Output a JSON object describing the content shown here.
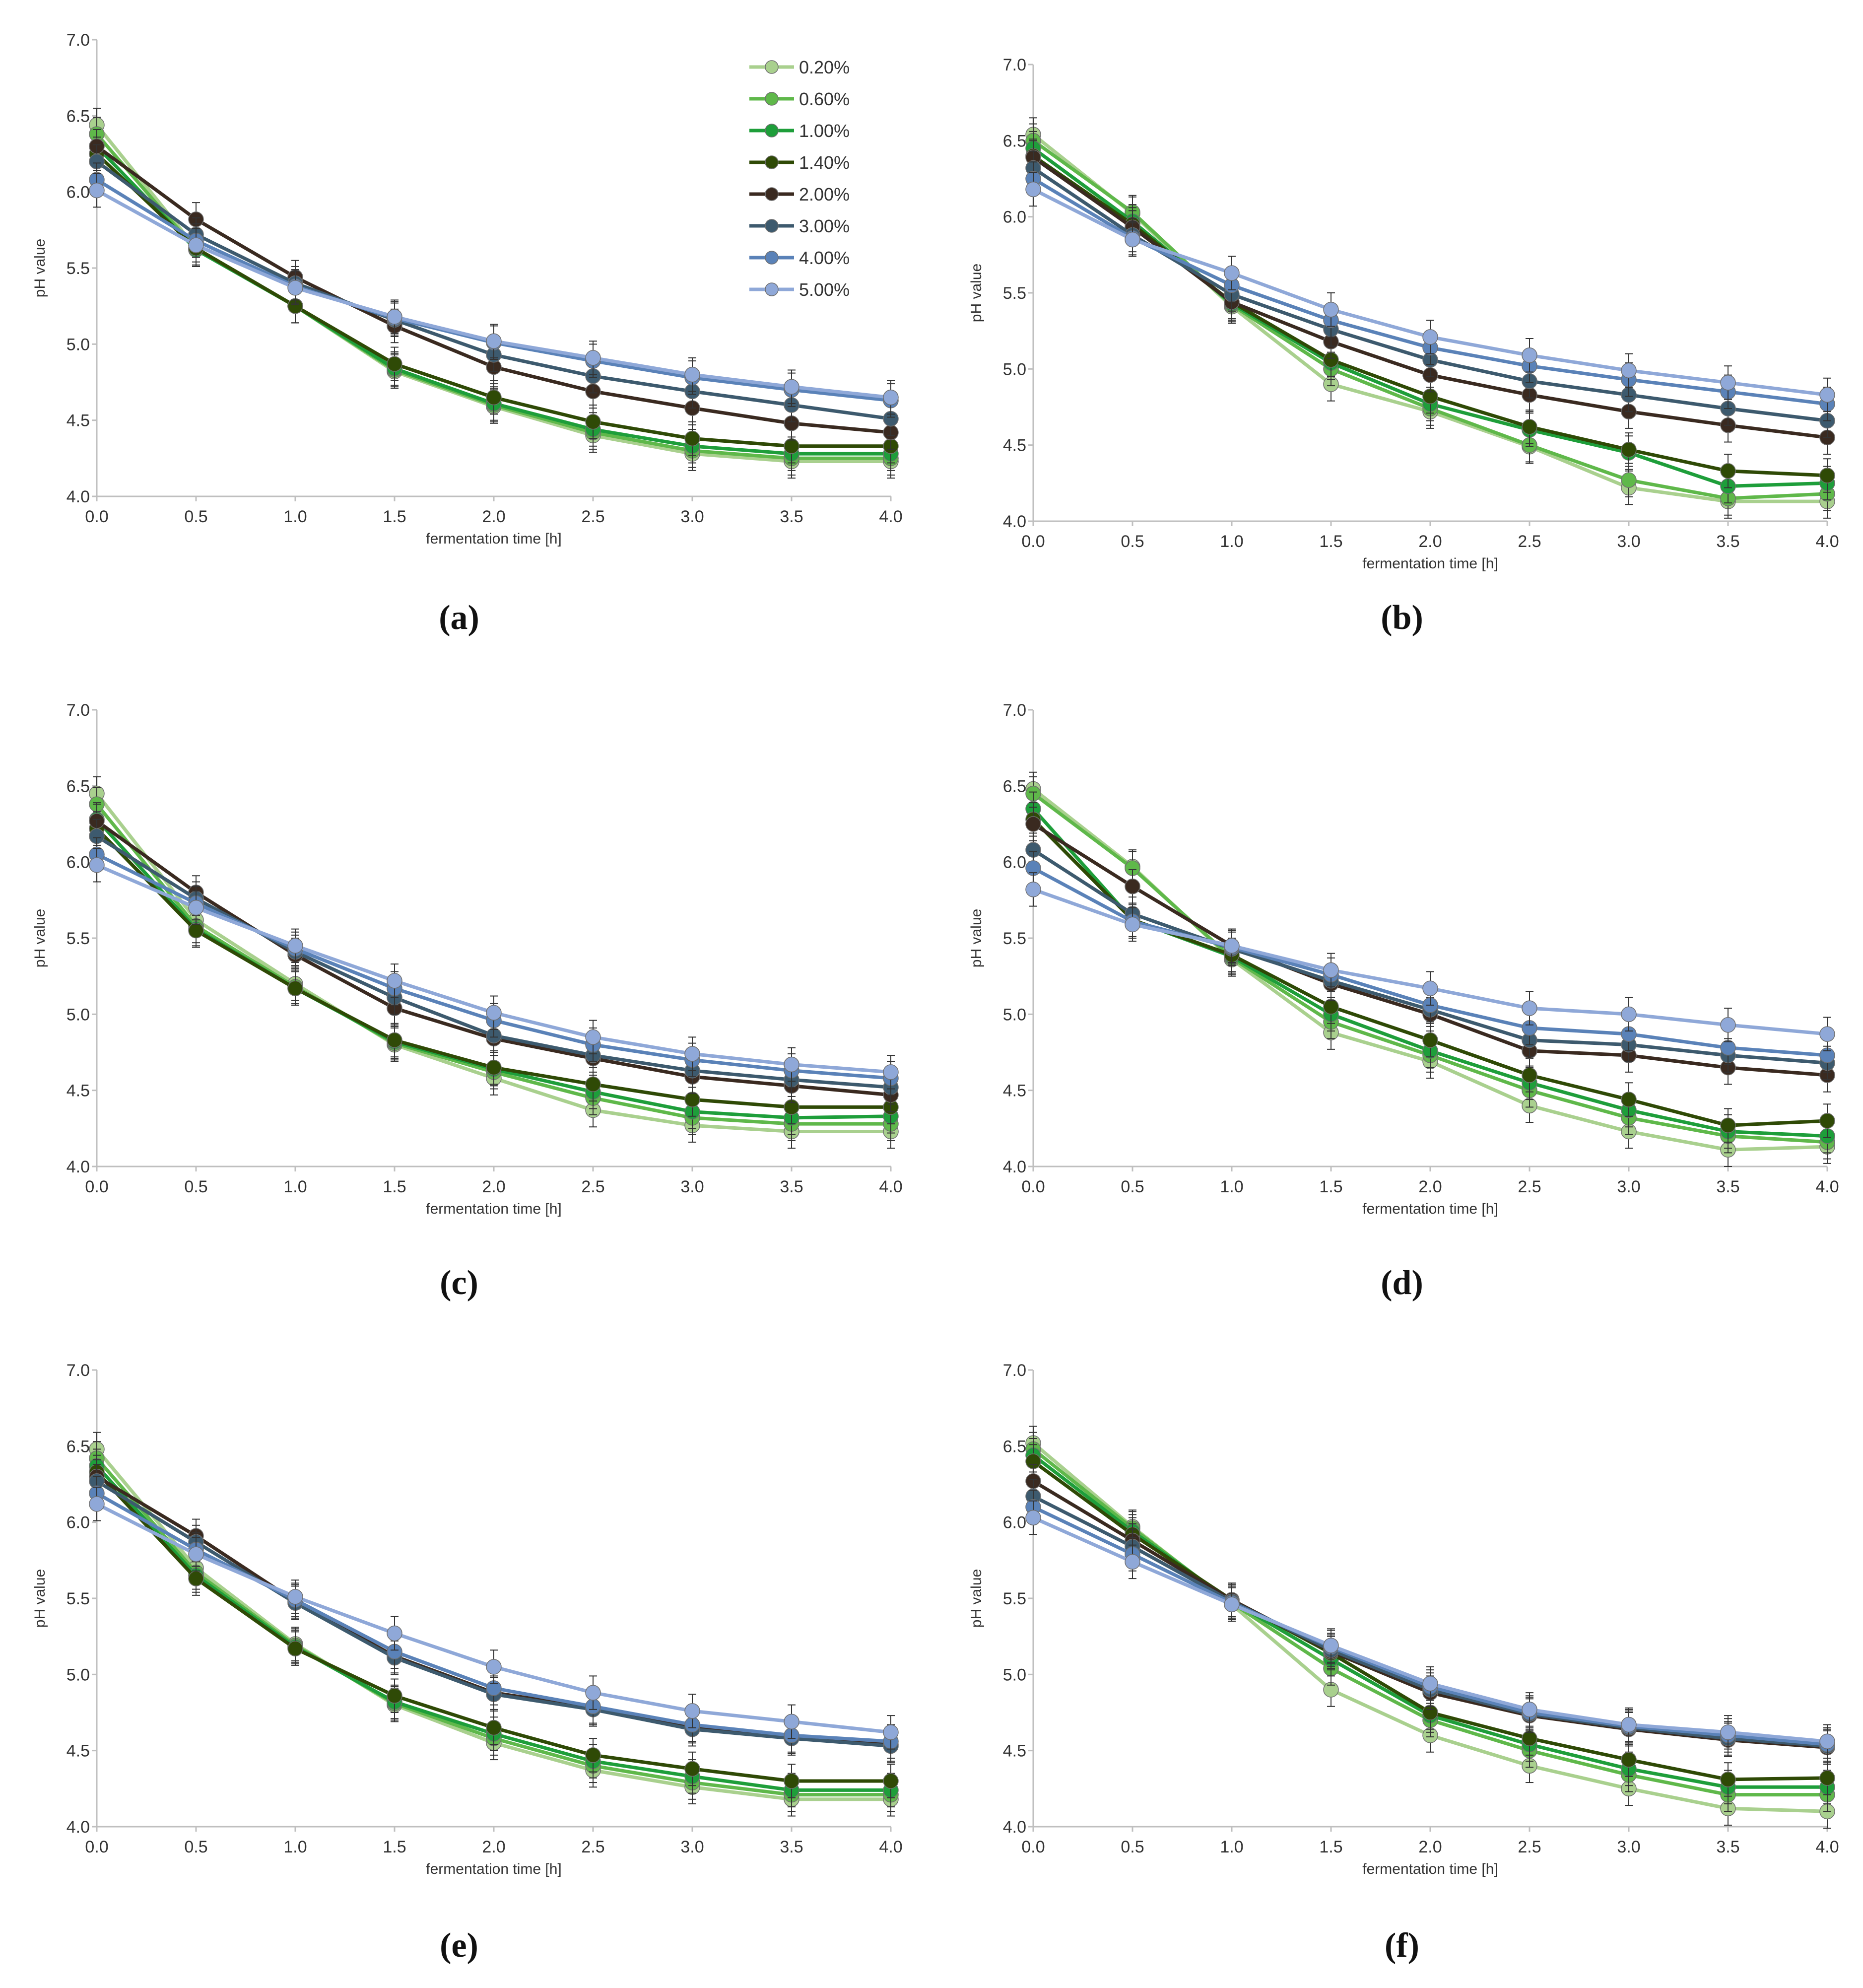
{
  "chart_data": [
    {
      "type": "line",
      "panel_label": "(a)",
      "xlabel": "fermentation time [h]",
      "ylabel": "pH value",
      "x": [
        0.0,
        0.5,
        1.0,
        1.5,
        2.0,
        2.5,
        3.0,
        3.5,
        4.0
      ],
      "xlim": [
        0.0,
        4.0
      ],
      "ylim": [
        4.0,
        7.0
      ],
      "xticks": [
        "0.0",
        "0.5",
        "1.0",
        "1.5",
        "2.0",
        "2.5",
        "3.0",
        "3.5",
        "4.0"
      ],
      "yticks": [
        "4.0",
        "4.5",
        "5.0",
        "5.5",
        "6.0",
        "6.5",
        "7.0"
      ],
      "legend": true,
      "legend_position": "top-right",
      "series": [
        {
          "name": "0.20%",
          "color": "#a9d08e",
          "values": [
            6.44,
            5.63,
            5.25,
            4.82,
            4.59,
            4.4,
            4.28,
            4.23,
            4.23
          ]
        },
        {
          "name": "0.60%",
          "color": "#5fb84a",
          "values": [
            6.38,
            5.62,
            5.25,
            4.83,
            4.6,
            4.42,
            4.3,
            4.25,
            4.25
          ]
        },
        {
          "name": "1.00%",
          "color": "#1e9e3a",
          "values": [
            6.3,
            5.62,
            5.25,
            4.84,
            4.61,
            4.44,
            4.33,
            4.28,
            4.28
          ]
        },
        {
          "name": "1.40%",
          "color": "#2f4a06",
          "values": [
            6.25,
            5.63,
            5.25,
            4.87,
            4.65,
            4.49,
            4.38,
            4.33,
            4.33
          ]
        },
        {
          "name": "2.00%",
          "color": "#3a2a20",
          "values": [
            6.3,
            5.82,
            5.44,
            5.12,
            4.85,
            4.69,
            4.58,
            4.48,
            4.42
          ]
        },
        {
          "name": "3.00%",
          "color": "#3d5a6e",
          "values": [
            6.2,
            5.72,
            5.4,
            5.16,
            4.93,
            4.79,
            4.69,
            4.6,
            4.51
          ]
        },
        {
          "name": "4.00%",
          "color": "#5a82b8",
          "values": [
            6.08,
            5.68,
            5.38,
            5.17,
            5.01,
            4.89,
            4.78,
            4.7,
            4.63
          ]
        },
        {
          "name": "5.00%",
          "color": "#8fa8d8",
          "values": [
            6.01,
            5.65,
            5.37,
            5.18,
            5.02,
            4.91,
            4.8,
            4.72,
            4.65
          ]
        }
      ]
    },
    {
      "type": "line",
      "panel_label": "(b)",
      "xlabel": "fermentation time [h]",
      "ylabel": "pH value",
      "x": [
        0.0,
        0.5,
        1.0,
        1.5,
        2.0,
        2.5,
        3.0,
        3.5,
        4.0
      ],
      "xlim": [
        0.0,
        4.0
      ],
      "ylim": [
        4.0,
        7.0
      ],
      "xticks": [
        "0.0",
        "0.5",
        "1.0",
        "1.5",
        "2.0",
        "2.5",
        "3.0",
        "3.5",
        "4.0"
      ],
      "yticks": [
        "4.0",
        "4.5",
        "5.0",
        "5.5",
        "6.0",
        "6.5",
        "7.0"
      ],
      "legend": false,
      "series": [
        {
          "name": "0.20%",
          "color": "#a9d08e",
          "values": [
            6.54,
            6.02,
            5.41,
            4.9,
            4.72,
            4.49,
            4.22,
            4.13,
            4.13
          ]
        },
        {
          "name": "0.60%",
          "color": "#5fb84a",
          "values": [
            6.5,
            6.03,
            5.42,
            5.0,
            4.74,
            4.5,
            4.27,
            4.15,
            4.18
          ]
        },
        {
          "name": "1.00%",
          "color": "#1e9e3a",
          "values": [
            6.45,
            5.97,
            5.43,
            5.04,
            4.77,
            4.6,
            4.45,
            4.23,
            4.25
          ]
        },
        {
          "name": "1.40%",
          "color": "#2f4a06",
          "values": [
            6.4,
            5.95,
            5.44,
            5.06,
            4.82,
            4.62,
            4.47,
            4.33,
            4.3
          ]
        },
        {
          "name": "2.00%",
          "color": "#3a2a20",
          "values": [
            6.39,
            5.93,
            5.44,
            5.18,
            4.96,
            4.83,
            4.72,
            4.63,
            4.55
          ]
        },
        {
          "name": "3.00%",
          "color": "#3d5a6e",
          "values": [
            6.32,
            5.88,
            5.49,
            5.26,
            5.06,
            4.92,
            4.83,
            4.74,
            4.66
          ]
        },
        {
          "name": "4.00%",
          "color": "#5a82b8",
          "values": [
            6.25,
            5.86,
            5.55,
            5.32,
            5.14,
            5.02,
            4.93,
            4.85,
            4.77
          ]
        },
        {
          "name": "5.00%",
          "color": "#8fa8d8",
          "values": [
            6.18,
            5.85,
            5.63,
            5.39,
            5.21,
            5.09,
            4.99,
            4.91,
            4.83
          ]
        }
      ]
    },
    {
      "type": "line",
      "panel_label": "(c)",
      "xlabel": "fermentation time [h]",
      "ylabel": "pH value",
      "x": [
        0.0,
        0.5,
        1.0,
        1.5,
        2.0,
        2.5,
        3.0,
        3.5,
        4.0
      ],
      "xlim": [
        0.0,
        4.0
      ],
      "ylim": [
        4.0,
        7.0
      ],
      "xticks": [
        "0.0",
        "0.5",
        "1.0",
        "1.5",
        "2.0",
        "2.5",
        "3.0",
        "3.5",
        "4.0"
      ],
      "yticks": [
        "4.0",
        "4.5",
        "5.0",
        "5.5",
        "6.0",
        "6.5",
        "7.0"
      ],
      "legend": false,
      "series": [
        {
          "name": "0.20%",
          "color": "#a9d08e",
          "values": [
            6.45,
            5.62,
            5.2,
            4.8,
            4.58,
            4.37,
            4.27,
            4.23,
            4.23
          ]
        },
        {
          "name": "0.60%",
          "color": "#5fb84a",
          "values": [
            6.38,
            5.58,
            5.18,
            4.81,
            4.62,
            4.45,
            4.32,
            4.28,
            4.28
          ]
        },
        {
          "name": "1.00%",
          "color": "#1e9e3a",
          "values": [
            6.28,
            5.56,
            5.17,
            4.82,
            4.64,
            4.49,
            4.36,
            4.32,
            4.33
          ]
        },
        {
          "name": "1.40%",
          "color": "#2f4a06",
          "values": [
            6.22,
            5.55,
            5.17,
            4.83,
            4.65,
            4.54,
            4.44,
            4.39,
            4.39
          ]
        },
        {
          "name": "2.00%",
          "color": "#3a2a20",
          "values": [
            6.27,
            5.8,
            5.39,
            5.04,
            4.84,
            4.71,
            4.59,
            4.53,
            4.47
          ]
        },
        {
          "name": "3.00%",
          "color": "#3d5a6e",
          "values": [
            6.17,
            5.76,
            5.41,
            5.11,
            4.86,
            4.73,
            4.63,
            4.57,
            4.52
          ]
        },
        {
          "name": "4.00%",
          "color": "#5a82b8",
          "values": [
            6.05,
            5.73,
            5.43,
            5.17,
            4.96,
            4.8,
            4.7,
            4.63,
            4.58
          ]
        },
        {
          "name": "5.00%",
          "color": "#8fa8d8",
          "values": [
            5.98,
            5.7,
            5.45,
            5.22,
            5.01,
            4.85,
            4.74,
            4.67,
            4.62
          ]
        }
      ]
    },
    {
      "type": "line",
      "panel_label": "(d)",
      "xlabel": "fermentation time [h]",
      "ylabel": "pH value",
      "x": [
        0.0,
        0.5,
        1.0,
        1.5,
        2.0,
        2.5,
        3.0,
        3.5,
        4.0
      ],
      "xlim": [
        0.0,
        4.0
      ],
      "ylim": [
        4.0,
        7.0
      ],
      "xticks": [
        "0.0",
        "0.5",
        "1.0",
        "1.5",
        "2.0",
        "2.5",
        "3.0",
        "3.5",
        "4.0"
      ],
      "yticks": [
        "4.0",
        "4.5",
        "5.0",
        "5.5",
        "6.0",
        "6.5",
        "7.0"
      ],
      "legend": false,
      "series": [
        {
          "name": "0.20%",
          "color": "#a9d08e",
          "values": [
            6.48,
            5.97,
            5.36,
            4.88,
            4.69,
            4.4,
            4.23,
            4.11,
            4.13
          ]
        },
        {
          "name": "0.60%",
          "color": "#5fb84a",
          "values": [
            6.45,
            5.96,
            5.37,
            4.95,
            4.73,
            4.5,
            4.32,
            4.2,
            4.16
          ]
        },
        {
          "name": "1.00%",
          "color": "#1e9e3a",
          "values": [
            6.35,
            5.62,
            5.38,
            5.0,
            4.76,
            4.55,
            4.37,
            4.23,
            4.2
          ]
        },
        {
          "name": "1.40%",
          "color": "#2f4a06",
          "values": [
            6.28,
            5.62,
            5.39,
            5.05,
            4.83,
            4.6,
            4.44,
            4.27,
            4.3
          ]
        },
        {
          "name": "2.00%",
          "color": "#3a2a20",
          "values": [
            6.25,
            5.84,
            5.45,
            5.2,
            5.0,
            4.76,
            4.73,
            4.65,
            4.6
          ]
        },
        {
          "name": "3.00%",
          "color": "#3d5a6e",
          "values": [
            6.08,
            5.66,
            5.43,
            5.22,
            5.03,
            4.83,
            4.8,
            4.73,
            4.68
          ]
        },
        {
          "name": "4.00%",
          "color": "#5a82b8",
          "values": [
            5.96,
            5.61,
            5.44,
            5.26,
            5.06,
            4.91,
            4.87,
            4.78,
            4.73
          ]
        },
        {
          "name": "5.00%",
          "color": "#8fa8d8",
          "values": [
            5.82,
            5.59,
            5.45,
            5.29,
            5.17,
            5.04,
            5.0,
            4.93,
            4.87
          ]
        }
      ]
    },
    {
      "type": "line",
      "panel_label": "(e)",
      "xlabel": "fermentation time [h]",
      "ylabel": "pH value",
      "x": [
        0.0,
        0.5,
        1.0,
        1.5,
        2.0,
        2.5,
        3.0,
        3.5,
        4.0
      ],
      "xlim": [
        0.0,
        4.0
      ],
      "ylim": [
        4.0,
        7.0
      ],
      "xticks": [
        "0.0",
        "0.5",
        "1.0",
        "1.5",
        "2.0",
        "2.5",
        "3.0",
        "3.5",
        "4.0"
      ],
      "yticks": [
        "4.0",
        "4.5",
        "5.0",
        "5.5",
        "6.0",
        "6.5",
        "7.0"
      ],
      "legend": false,
      "series": [
        {
          "name": "0.20%",
          "color": "#a9d08e",
          "values": [
            6.48,
            5.7,
            5.2,
            4.8,
            4.55,
            4.37,
            4.26,
            4.18,
            4.18
          ]
        },
        {
          "name": "0.60%",
          "color": "#5fb84a",
          "values": [
            6.42,
            5.67,
            5.19,
            4.81,
            4.58,
            4.4,
            4.29,
            4.21,
            4.21
          ]
        },
        {
          "name": "1.00%",
          "color": "#1e9e3a",
          "values": [
            6.37,
            5.65,
            5.18,
            4.82,
            4.61,
            4.43,
            4.33,
            4.24,
            4.24
          ]
        },
        {
          "name": "1.40%",
          "color": "#2f4a06",
          "values": [
            6.33,
            5.63,
            5.17,
            4.86,
            4.65,
            4.47,
            4.38,
            4.3,
            4.3
          ]
        },
        {
          "name": "2.00%",
          "color": "#3a2a20",
          "values": [
            6.3,
            5.91,
            5.48,
            5.12,
            4.88,
            4.78,
            4.66,
            4.59,
            4.54
          ]
        },
        {
          "name": "3.00%",
          "color": "#3d5a6e",
          "values": [
            6.27,
            5.87,
            5.47,
            5.11,
            4.87,
            4.77,
            4.64,
            4.58,
            4.53
          ]
        },
        {
          "name": "4.00%",
          "color": "#5a82b8",
          "values": [
            6.19,
            5.82,
            5.49,
            5.15,
            4.91,
            4.79,
            4.67,
            4.6,
            4.56
          ]
        },
        {
          "name": "5.00%",
          "color": "#8fa8d8",
          "values": [
            6.12,
            5.79,
            5.51,
            5.27,
            5.05,
            4.88,
            4.76,
            4.69,
            4.62
          ]
        }
      ]
    },
    {
      "type": "line",
      "panel_label": "(f)",
      "xlabel": "fermentation time [h]",
      "ylabel": "pH value",
      "x": [
        0.0,
        0.5,
        1.0,
        1.5,
        2.0,
        2.5,
        3.0,
        3.5,
        4.0
      ],
      "xlim": [
        0.0,
        4.0
      ],
      "ylim": [
        4.0,
        7.0
      ],
      "xticks": [
        "0.0",
        "0.5",
        "1.0",
        "1.5",
        "2.0",
        "2.5",
        "3.0",
        "3.5",
        "4.0"
      ],
      "yticks": [
        "4.0",
        "4.5",
        "5.0",
        "5.5",
        "6.0",
        "6.5",
        "7.0"
      ],
      "legend": false,
      "series": [
        {
          "name": "0.20%",
          "color": "#a9d08e",
          "values": [
            6.52,
            5.97,
            5.46,
            4.9,
            4.6,
            4.4,
            4.25,
            4.12,
            4.1
          ]
        },
        {
          "name": "0.60%",
          "color": "#5fb84a",
          "values": [
            6.48,
            5.96,
            5.47,
            5.04,
            4.7,
            4.5,
            4.34,
            4.21,
            4.21
          ]
        },
        {
          "name": "1.00%",
          "color": "#1e9e3a",
          "values": [
            6.44,
            5.94,
            5.48,
            5.1,
            4.73,
            4.54,
            4.38,
            4.26,
            4.26
          ]
        },
        {
          "name": "1.40%",
          "color": "#2f4a06",
          "values": [
            6.4,
            5.92,
            5.49,
            5.14,
            4.75,
            4.58,
            4.44,
            4.31,
            4.32
          ]
        },
        {
          "name": "2.00%",
          "color": "#3a2a20",
          "values": [
            6.27,
            5.88,
            5.49,
            5.15,
            4.88,
            4.73,
            4.64,
            4.57,
            4.52
          ]
        },
        {
          "name": "3.00%",
          "color": "#3d5a6e",
          "values": [
            6.17,
            5.84,
            5.48,
            5.16,
            4.9,
            4.74,
            4.65,
            4.58,
            4.53
          ]
        },
        {
          "name": "4.00%",
          "color": "#5a82b8",
          "values": [
            6.1,
            5.79,
            5.47,
            5.18,
            4.92,
            4.75,
            4.66,
            4.6,
            4.54
          ]
        },
        {
          "name": "5.00%",
          "color": "#8fa8d8",
          "values": [
            6.03,
            5.74,
            5.46,
            5.19,
            4.94,
            4.77,
            4.67,
            4.62,
            4.56
          ]
        }
      ]
    }
  ]
}
